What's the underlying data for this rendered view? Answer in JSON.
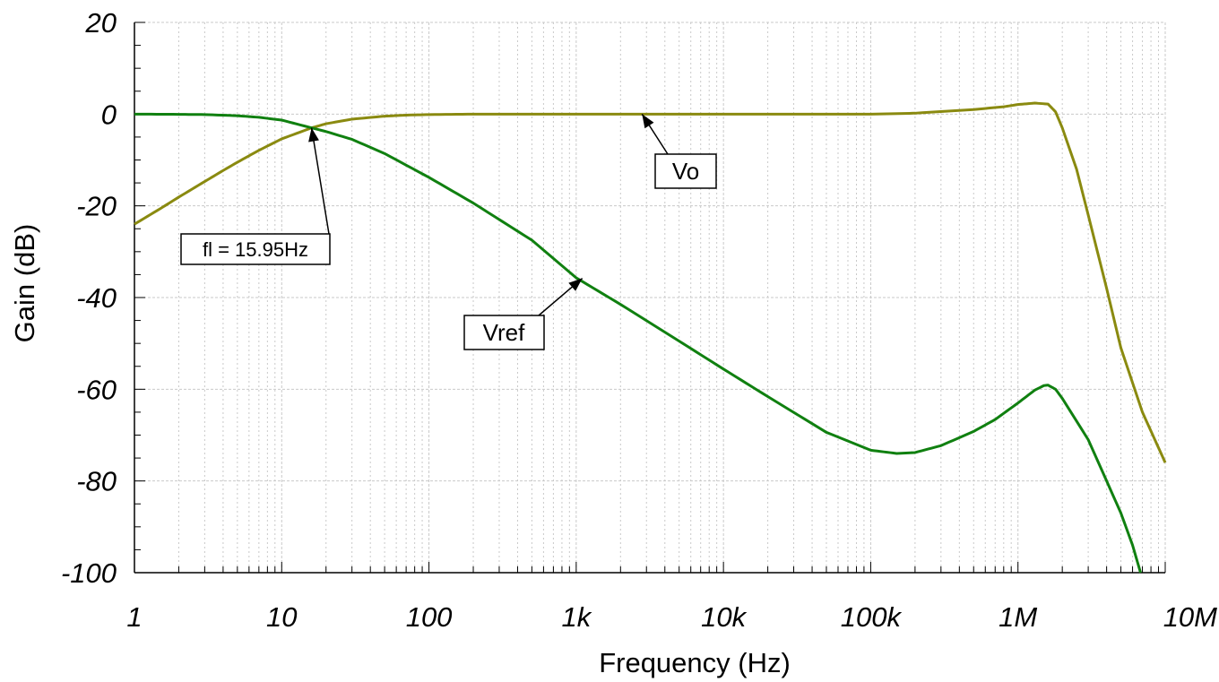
{
  "chart_data": {
    "type": "line",
    "xlabel": "Frequency (Hz)",
    "ylabel": "Gain (dB)",
    "x_scale": "log",
    "xlim": [
      1,
      10000000
    ],
    "ylim": [
      -100,
      20
    ],
    "grid": true,
    "x_ticks": [
      {
        "value": 1,
        "label": "1"
      },
      {
        "value": 10,
        "label": "10"
      },
      {
        "value": 100,
        "label": "100"
      },
      {
        "value": 1000,
        "label": "1k"
      },
      {
        "value": 10000,
        "label": "10k"
      },
      {
        "value": 100000,
        "label": "100k"
      },
      {
        "value": 1000000,
        "label": "1M"
      },
      {
        "value": 10000000,
        "label": "10M"
      }
    ],
    "y_ticks": [
      {
        "value": 20,
        "label": "20"
      },
      {
        "value": 0,
        "label": "0"
      },
      {
        "value": -20,
        "label": "-20"
      },
      {
        "value": -40,
        "label": "-40"
      },
      {
        "value": -60,
        "label": "-60"
      },
      {
        "value": -80,
        "label": "-80"
      },
      {
        "value": -100,
        "label": "-100"
      }
    ],
    "series": [
      {
        "name": "Vo",
        "color": "#8a8a10",
        "x": [
          1,
          1.5,
          2,
          3,
          4,
          5,
          7,
          10,
          15.95,
          20,
          30,
          50,
          70,
          100,
          200,
          1000,
          10000,
          100000,
          200000,
          500000,
          800000,
          1000000,
          1300000,
          1600000,
          1800000,
          2000000,
          2500000,
          3000000,
          4000000,
          5000000,
          7000000,
          10000000
        ],
        "y": [
          -24,
          -20.6,
          -18.1,
          -14.7,
          -12.3,
          -10.5,
          -7.9,
          -5.4,
          -3.0,
          -2.1,
          -1.1,
          -0.45,
          -0.22,
          -0.1,
          0,
          0,
          0,
          0,
          0.2,
          1.0,
          1.6,
          2.1,
          2.4,
          2.2,
          0.5,
          -3,
          -12,
          -22,
          -38,
          -51,
          -65,
          -76
        ]
      },
      {
        "name": "Vref",
        "color": "#108010",
        "x": [
          1,
          2,
          3,
          5,
          7,
          10,
          15.95,
          20,
          30,
          50,
          100,
          200,
          500,
          1000,
          2000,
          5000,
          10000,
          20000,
          50000,
          100000,
          150000,
          200000,
          300000,
          500000,
          700000,
          1000000,
          1300000,
          1500000,
          1600000,
          1800000,
          2000000,
          3000000,
          4000000,
          5000000,
          6000000,
          6800000
        ],
        "y": [
          0,
          -0.05,
          -0.1,
          -0.35,
          -0.7,
          -1.3,
          -3.0,
          -3.8,
          -5.5,
          -8.6,
          -13.8,
          -19.4,
          -27.5,
          -35.7,
          -41.5,
          -49.5,
          -55.6,
          -61.6,
          -69.4,
          -73.3,
          -74,
          -73.8,
          -72.3,
          -69.2,
          -66.6,
          -63.0,
          -60.2,
          -59.2,
          -59.1,
          -60,
          -62,
          -71,
          -80,
          -87,
          -94,
          -100
        ]
      }
    ],
    "annotations": [
      {
        "id": "vo",
        "text": "Vo",
        "x": 2800,
        "y": 0
      },
      {
        "id": "vref",
        "text": "Vref",
        "x": 1100,
        "y": -35.8
      },
      {
        "id": "fl",
        "text": "fl = 15.95Hz",
        "x": 15.95,
        "y": -3
      }
    ]
  }
}
